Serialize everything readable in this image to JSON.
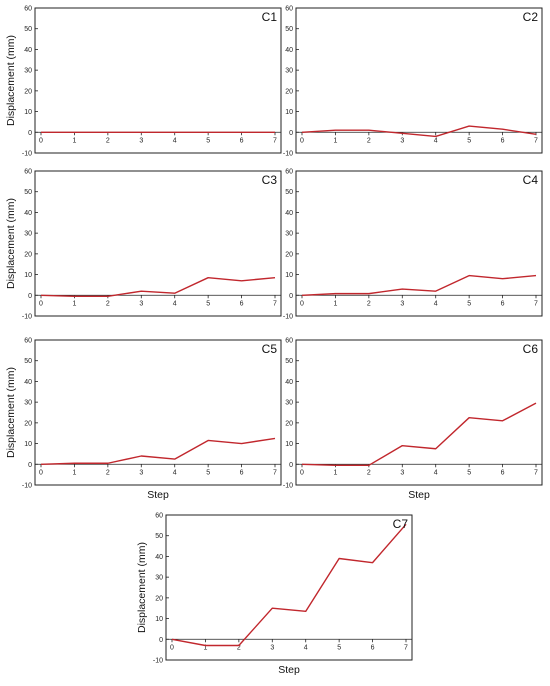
{
  "chart_data": [
    {
      "type": "line",
      "title": "C1",
      "xlabel": "",
      "ylabel": "Displacement (mm)",
      "xlim": [
        0,
        7
      ],
      "ylim": [
        -10,
        60
      ],
      "x": [
        0,
        1,
        2,
        3,
        4,
        5,
        6,
        7
      ],
      "yticks": [
        -10,
        0,
        10,
        20,
        30,
        40,
        50,
        60
      ],
      "line_color": "#c1272d",
      "series": [
        {
          "values": [
            0,
            0,
            0,
            0,
            0,
            0,
            0,
            0
          ]
        }
      ]
    },
    {
      "type": "line",
      "title": "C2",
      "xlabel": "",
      "ylabel": "",
      "xlim": [
        0,
        7
      ],
      "ylim": [
        -10,
        60
      ],
      "x": [
        0,
        1,
        2,
        3,
        4,
        5,
        6,
        7
      ],
      "yticks": [
        -10,
        0,
        10,
        20,
        30,
        40,
        50,
        60
      ],
      "line_color": "#c1272d",
      "series": [
        {
          "values": [
            0,
            1,
            1,
            -0.5,
            -2,
            3,
            1.5,
            -1
          ]
        }
      ]
    },
    {
      "type": "line",
      "title": "C3",
      "xlabel": "",
      "ylabel": "Displacement (mm)",
      "xlim": [
        0,
        7
      ],
      "ylim": [
        -10,
        60
      ],
      "x": [
        0,
        1,
        2,
        3,
        4,
        5,
        6,
        7
      ],
      "yticks": [
        -10,
        0,
        10,
        20,
        30,
        40,
        50,
        60
      ],
      "line_color": "#c1272d",
      "series": [
        {
          "values": [
            0,
            -0.5,
            -0.5,
            2,
            1,
            8.5,
            7,
            8.5
          ]
        }
      ]
    },
    {
      "type": "line",
      "title": "C4",
      "xlabel": "",
      "ylabel": "",
      "xlim": [
        0,
        7
      ],
      "ylim": [
        -10,
        60
      ],
      "x": [
        0,
        1,
        2,
        3,
        4,
        5,
        6,
        7
      ],
      "yticks": [
        -10,
        0,
        10,
        20,
        30,
        40,
        50,
        60
      ],
      "line_color": "#c1272d",
      "series": [
        {
          "values": [
            0,
            0.8,
            0.8,
            3,
            2,
            9.5,
            8,
            9.5
          ]
        }
      ]
    },
    {
      "type": "line",
      "title": "C5",
      "xlabel": "Step",
      "ylabel": "Displacement (mm)",
      "xlim": [
        0,
        7
      ],
      "ylim": [
        -10,
        60
      ],
      "x": [
        0,
        1,
        2,
        3,
        4,
        5,
        6,
        7
      ],
      "yticks": [
        -10,
        0,
        10,
        20,
        30,
        40,
        50,
        60
      ],
      "line_color": "#c1272d",
      "series": [
        {
          "values": [
            0,
            0.5,
            0.5,
            4,
            2.5,
            11.5,
            10,
            12.5
          ]
        }
      ]
    },
    {
      "type": "line",
      "title": "C6",
      "xlabel": "Step",
      "ylabel": "",
      "xlim": [
        0,
        7
      ],
      "ylim": [
        -10,
        60
      ],
      "x": [
        0,
        1,
        2,
        3,
        4,
        5,
        6,
        7
      ],
      "yticks": [
        -10,
        0,
        10,
        20,
        30,
        40,
        50,
        60
      ],
      "line_color": "#c1272d",
      "series": [
        {
          "values": [
            0,
            -0.5,
            -0.5,
            9,
            7.5,
            22.5,
            21,
            29.5
          ]
        }
      ]
    },
    {
      "type": "line",
      "title": "C7",
      "xlabel": "Step",
      "ylabel": "Displacement (mm)",
      "xlim": [
        0,
        7
      ],
      "ylim": [
        -10,
        60
      ],
      "x": [
        0,
        1,
        2,
        3,
        4,
        5,
        6,
        7
      ],
      "yticks": [
        -10,
        0,
        10,
        20,
        30,
        40,
        50,
        60
      ],
      "line_color": "#c1272d",
      "series": [
        {
          "values": [
            0,
            -3,
            -3,
            15,
            13.5,
            39,
            37,
            55.5
          ]
        }
      ]
    }
  ]
}
